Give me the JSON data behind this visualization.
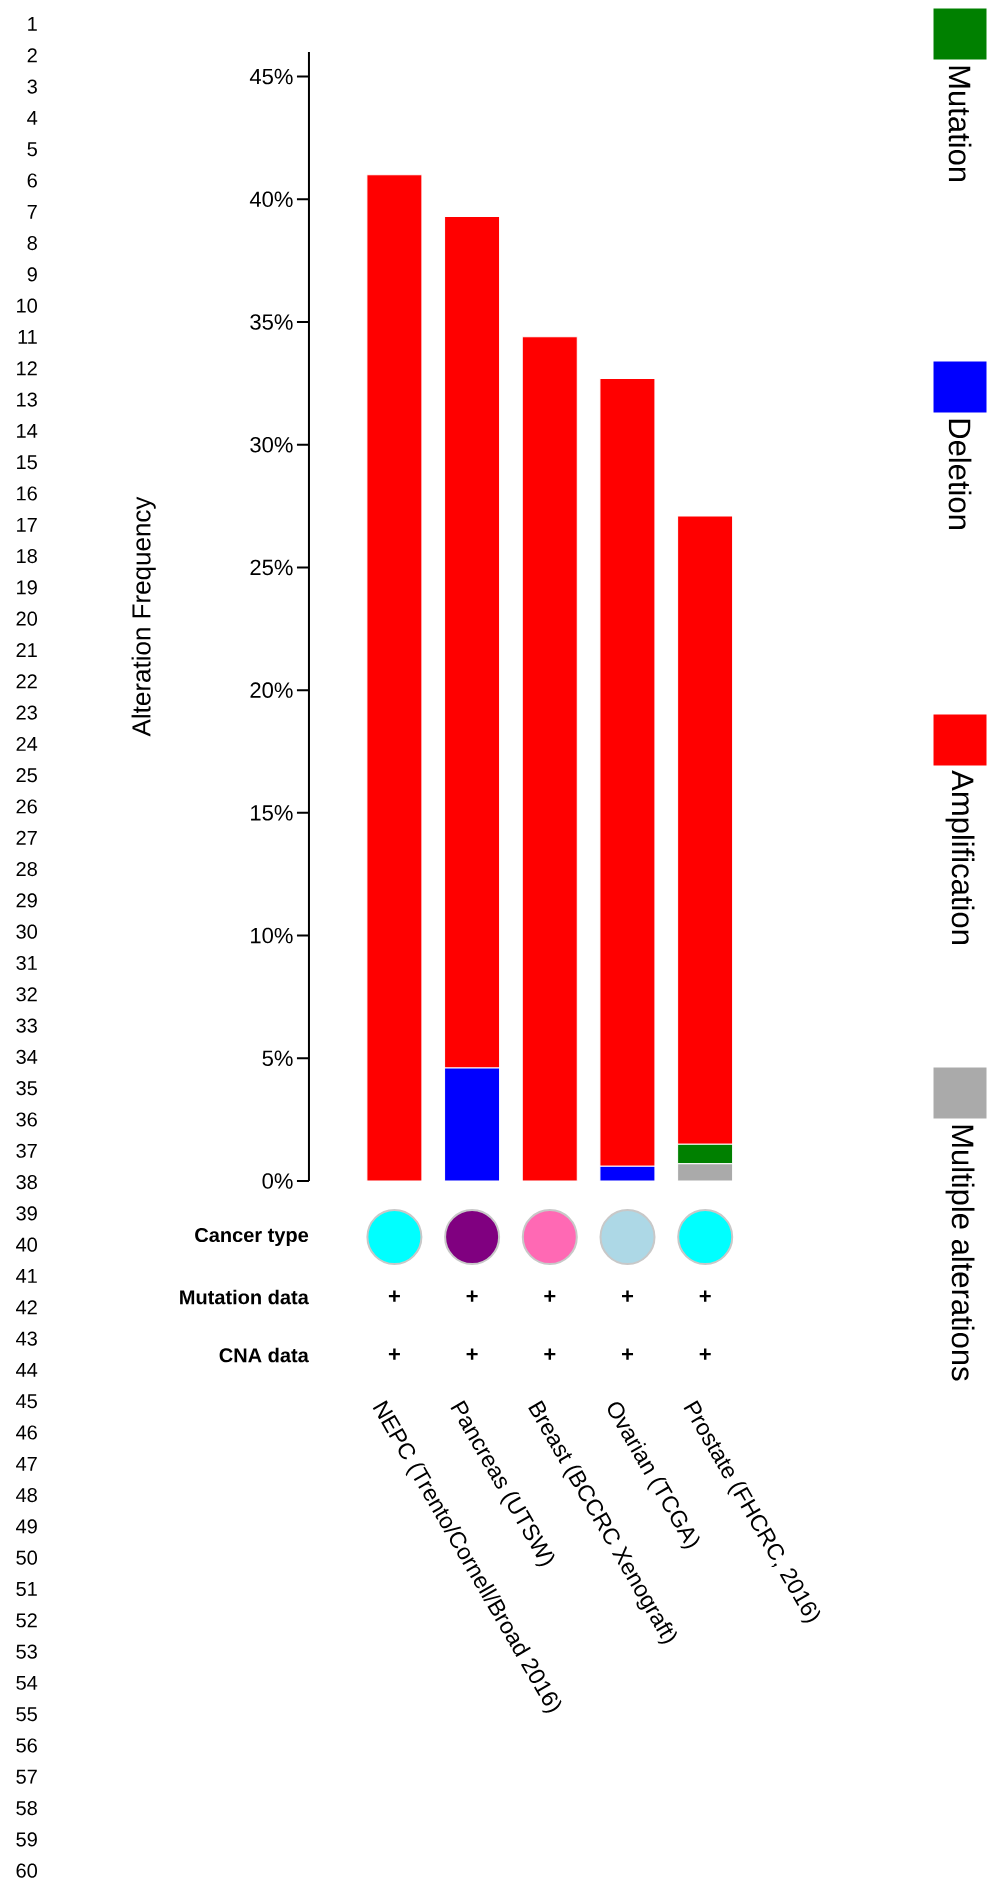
{
  "chart_data": {
    "type": "bar",
    "stacked": true,
    "ylabel": "Alteration Frequency",
    "categories": [
      "NEPC (Trento/Cornell/Broad 2016)",
      "Pancreas (UTSW)",
      "Breast (BCCRC Xenograft)",
      "Ovarian (TCGA)",
      "Prostate (FHCRC, 2016)"
    ],
    "series": [
      {
        "name": "Multiple alterations",
        "color": "#aaaaaa",
        "values": [
          null,
          null,
          null,
          null,
          0.7
        ]
      },
      {
        "name": "Mutation",
        "color": "#008000",
        "values": [
          null,
          null,
          null,
          null,
          0.8
        ]
      },
      {
        "name": "Deletion",
        "color": "#0000ff",
        "values": [
          null,
          4.6,
          null,
          0.6,
          null
        ]
      },
      {
        "name": "Amplification",
        "color": "#ff0000",
        "values": [
          41.0,
          34.7,
          34.4,
          32.1,
          25.6
        ]
      }
    ],
    "ylim": [
      0,
      46
    ],
    "yticks": [
      {
        "value": 0,
        "label": "0%"
      },
      {
        "value": 5,
        "label": "5%"
      },
      {
        "value": 10,
        "label": "10%"
      },
      {
        "value": 15,
        "label": "15%"
      },
      {
        "value": 20,
        "label": "20%"
      },
      {
        "value": 25,
        "label": "25%"
      },
      {
        "value": 30,
        "label": "30%"
      },
      {
        "value": 35,
        "label": "35%"
      },
      {
        "value": 40,
        "label": "40%"
      },
      {
        "value": 45,
        "label": "45%"
      }
    ],
    "grid": false,
    "legend": "right",
    "annotations": [
      "1",
      "2",
      "3",
      "4",
      "5",
      "6",
      "7",
      "8",
      "9",
      "10",
      "11",
      "12",
      "13",
      "14",
      "15",
      "16",
      "17",
      "18",
      "19",
      "20",
      "21",
      "22",
      "23",
      "24",
      "25",
      "26",
      "27",
      "28",
      "29",
      "30",
      "31",
      "32",
      "33",
      "34",
      "35",
      "36",
      "37",
      "38",
      "39",
      "40",
      "41",
      "42",
      "43",
      "44",
      "45",
      "46",
      "47",
      "48",
      "49",
      "50",
      "51",
      "52",
      "53",
      "54",
      "55",
      "56",
      "57",
      "58",
      "59",
      "60",
      "Cancer type",
      "Mutation data",
      "CNA data",
      "+",
      "+",
      "+",
      "+",
      "+",
      "+",
      "+",
      "+",
      "+",
      "+"
    ]
  }
}
